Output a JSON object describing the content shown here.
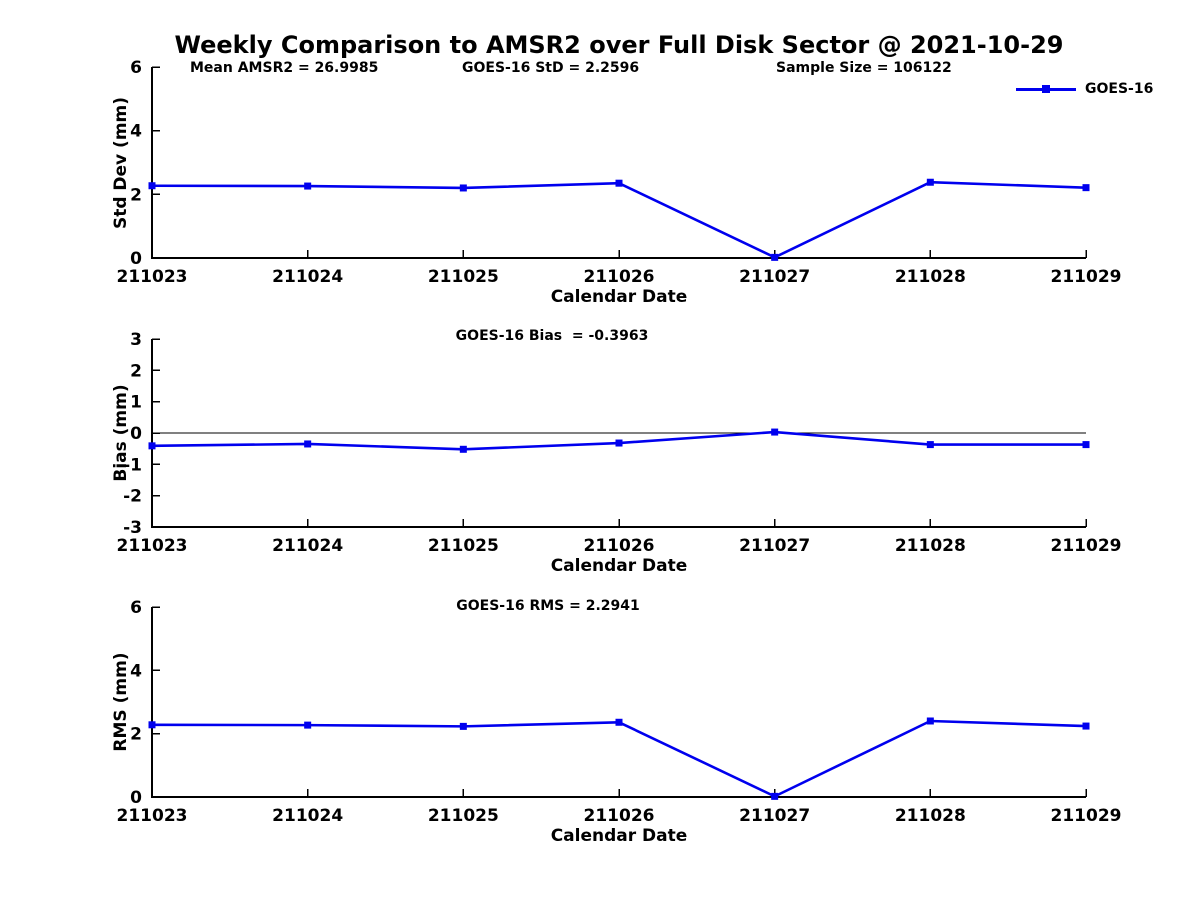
{
  "title": "Weekly Comparison to AMSR2 over Full Disk Sector @ 2021-10-29",
  "colors": {
    "series": "#0000EE",
    "axis": "#000000",
    "text": "#000000",
    "background": "#FFFFFF"
  },
  "legend": {
    "label": "GOES-16"
  },
  "header_annotations": [
    {
      "text": "Mean AMSR2 = 26.9985"
    },
    {
      "text": "GOES-16 StD = 2.2596"
    },
    {
      "text": "Sample Size = 106122"
    }
  ],
  "chart_data": [
    {
      "type": "line",
      "name": "std-dev",
      "annotation": "",
      "x": [
        "211023",
        "211024",
        "211025",
        "211026",
        "211027",
        "211028",
        "211029"
      ],
      "xlabel": "Calendar Date",
      "ylabel": "Std Dev (mm)",
      "ylim": [
        0,
        6
      ],
      "yticks": [
        0,
        2,
        4,
        6
      ],
      "grid": false,
      "zero_line": false,
      "legend_position": "top-right",
      "series": [
        {
          "name": "GOES-16",
          "values": [
            2.27,
            2.26,
            2.2,
            2.35,
            0.02,
            2.38,
            2.21
          ]
        }
      ]
    },
    {
      "type": "line",
      "name": "bias",
      "annotation": "GOES-16 Bias  = -0.3963",
      "x": [
        "211023",
        "211024",
        "211025",
        "211026",
        "211027",
        "211028",
        "211029"
      ],
      "xlabel": "Calendar Date",
      "ylabel": "Bias (mm)",
      "ylim": [
        -3,
        3
      ],
      "yticks": [
        -3,
        -2,
        -1,
        0,
        1,
        2,
        3
      ],
      "grid": false,
      "zero_line": true,
      "legend_position": "none",
      "series": [
        {
          "name": "GOES-16",
          "values": [
            -0.41,
            -0.35,
            -0.52,
            -0.32,
            0.03,
            -0.37,
            -0.37
          ]
        }
      ]
    },
    {
      "type": "line",
      "name": "rms",
      "annotation": "GOES-16 RMS = 2.2941",
      "x": [
        "211023",
        "211024",
        "211025",
        "211026",
        "211027",
        "211028",
        "211029"
      ],
      "xlabel": "Calendar Date",
      "ylabel": "RMS (mm)",
      "ylim": [
        0,
        6
      ],
      "yticks": [
        0,
        2,
        4,
        6
      ],
      "grid": false,
      "zero_line": false,
      "legend_position": "none",
      "series": [
        {
          "name": "GOES-16",
          "values": [
            2.28,
            2.27,
            2.23,
            2.36,
            0.02,
            2.4,
            2.24
          ]
        }
      ]
    }
  ]
}
